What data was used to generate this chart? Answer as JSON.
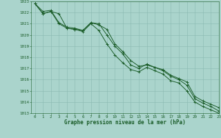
{
  "x": [
    0,
    1,
    2,
    3,
    4,
    5,
    6,
    7,
    8,
    9,
    10,
    11,
    12,
    13,
    14,
    15,
    16,
    17,
    18,
    19,
    20,
    21,
    22,
    23
  ],
  "line1": [
    1022.8,
    1021.9,
    1022.1,
    1021.9,
    1020.6,
    1020.5,
    1020.4,
    1021.1,
    1020.9,
    1020.5,
    1019.2,
    1018.5,
    1017.7,
    1017.2,
    1017.3,
    1017.1,
    1016.8,
    1016.3,
    1016.0,
    1015.5,
    1014.3,
    1013.9,
    1013.6,
    1013.2
  ],
  "line2": [
    1022.8,
    1021.9,
    1022.1,
    1021.0,
    1020.6,
    1020.5,
    1020.3,
    1021.0,
    1020.4,
    1019.2,
    1018.2,
    1017.5,
    1016.9,
    1016.7,
    1017.1,
    1016.8,
    1016.5,
    1015.9,
    1015.7,
    1015.0,
    1014.0,
    1013.6,
    1013.3,
    1013.0
  ],
  "line3": [
    1022.8,
    1022.1,
    1022.2,
    1021.1,
    1020.7,
    1020.6,
    1020.4,
    1021.1,
    1021.0,
    1020.0,
    1019.0,
    1018.3,
    1017.3,
    1017.0,
    1017.4,
    1017.1,
    1016.9,
    1016.4,
    1016.1,
    1015.8,
    1014.5,
    1014.1,
    1013.8,
    1013.5
  ],
  "bg_color": "#aad4cc",
  "grid_color": "#88b8b0",
  "line_color": "#1a5c28",
  "xlabel": "Graphe pression niveau de la mer (hPa)",
  "ylim": [
    1013,
    1023
  ],
  "xlim": [
    -0.5,
    23
  ],
  "yticks": [
    1013,
    1014,
    1015,
    1016,
    1017,
    1018,
    1019,
    1020,
    1021,
    1022,
    1023
  ],
  "xticks": [
    0,
    1,
    2,
    3,
    4,
    5,
    6,
    7,
    8,
    9,
    10,
    11,
    12,
    13,
    14,
    15,
    16,
    17,
    18,
    19,
    20,
    21,
    22,
    23
  ],
  "ylabel_fontsize": 4.2,
  "xlabel_fontsize": 5.5,
  "tick_fontsize": 4.2
}
